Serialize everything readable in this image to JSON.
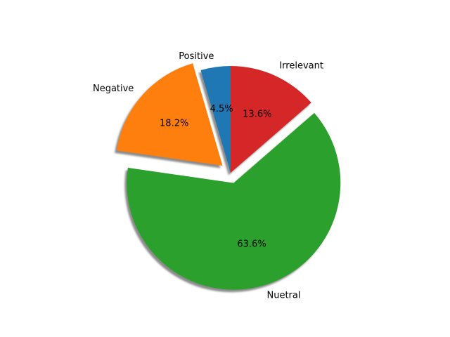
{
  "chart_data": {
    "type": "pie",
    "title": "",
    "start_angle_deg": 90,
    "direction": "counterclockwise",
    "shadow": true,
    "slices": [
      {
        "label": "Positive",
        "value": 4.5,
        "pct_text": "4.5%",
        "color": "#1f77b4",
        "explode": 0.0
      },
      {
        "label": "Negative",
        "value": 18.2,
        "pct_text": "18.2%",
        "color": "#ff7f0e",
        "explode": 0.1
      },
      {
        "label": "Nuetral",
        "value": 63.6,
        "pct_text": "63.6%",
        "color": "#2ca02c",
        "explode": 0.1
      },
      {
        "label": "Irrelevant",
        "value": 13.6,
        "pct_text": "13.6%",
        "color": "#d62728",
        "explode": 0.0
      }
    ]
  }
}
